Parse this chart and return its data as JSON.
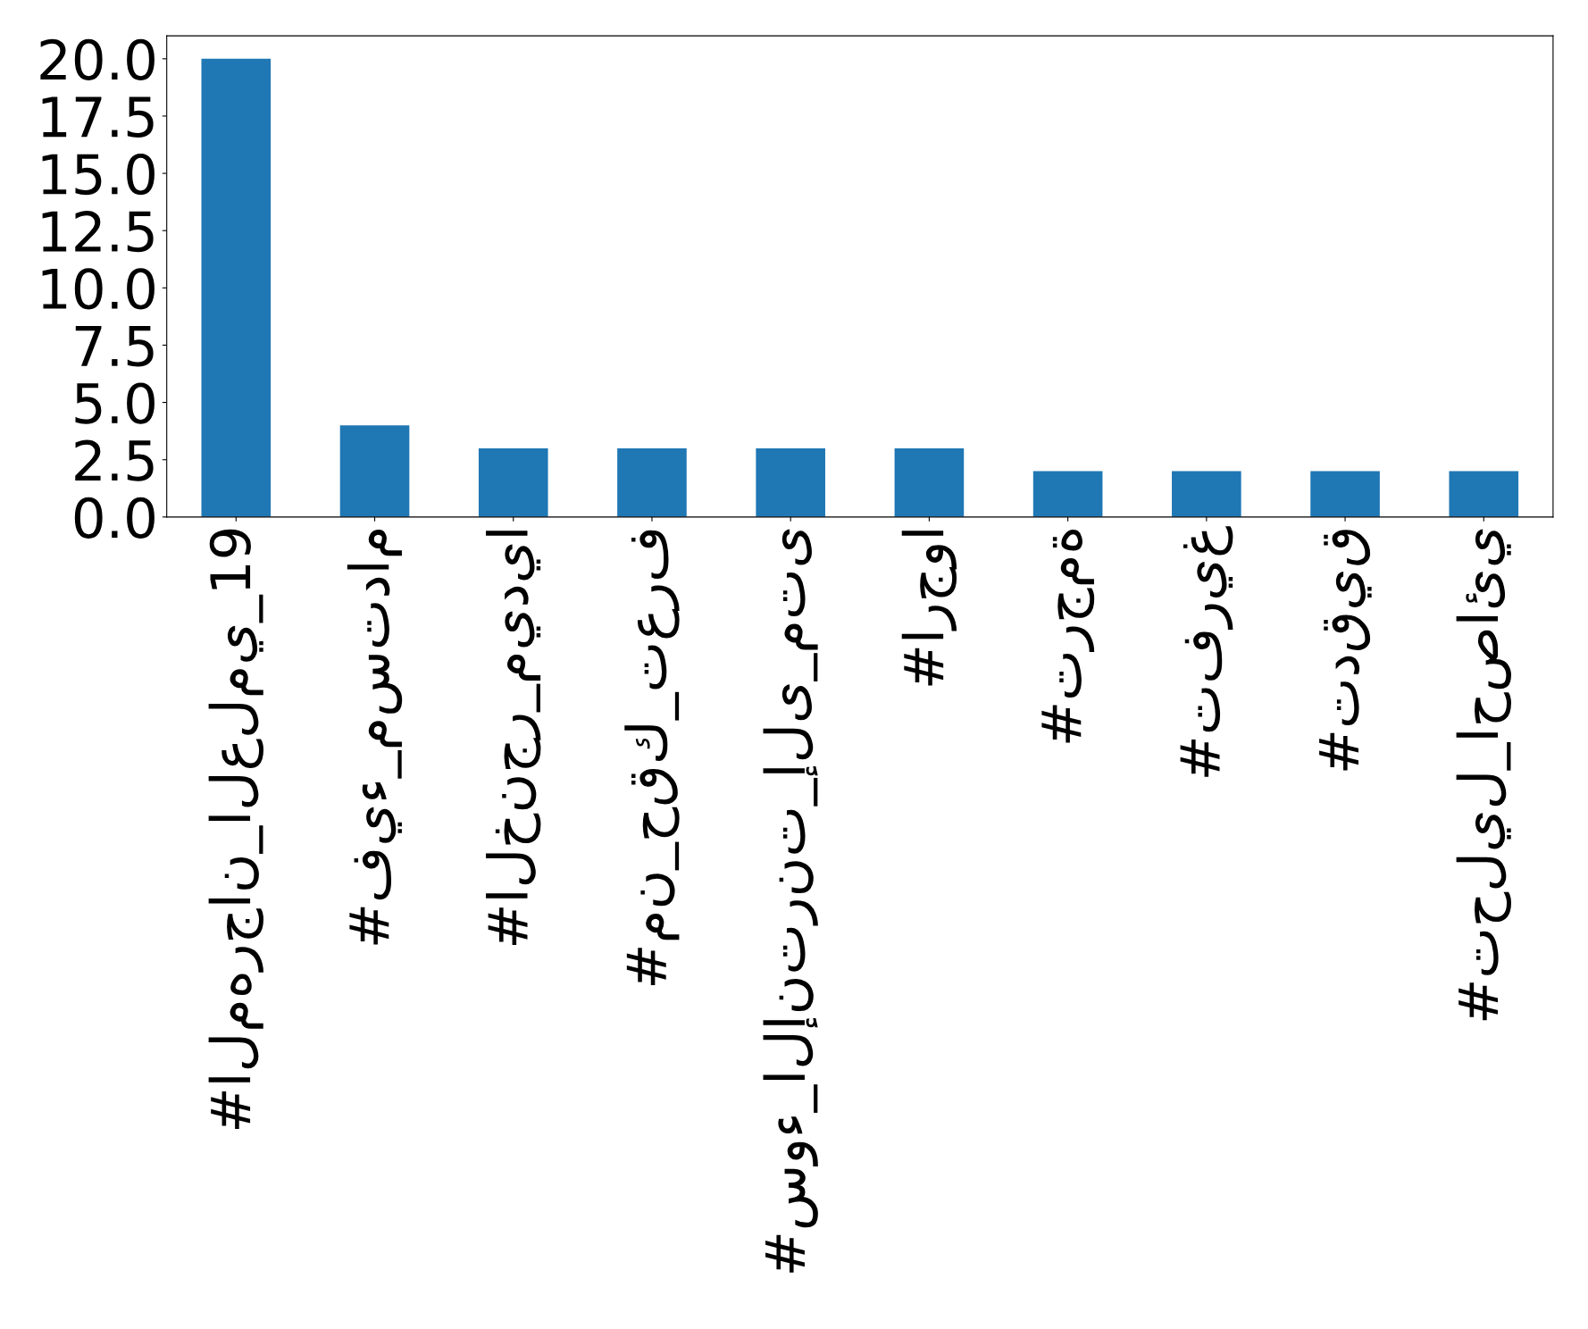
{
  "chart_data": {
    "type": "bar",
    "categories": [
      "#المهرجان_العلمي_19",
      "#فيء_مستدام",
      "#الخنجر_ميديا",
      "#من_حقك_تعرف",
      "#سوء_الإنترنت_إلى_متى",
      "#ارجوا",
      "#ترجمة",
      "#تفريغ",
      "#تدقيق",
      "#تحليل_احصائي"
    ],
    "values": [
      20,
      4,
      3,
      3,
      3,
      3,
      2,
      2,
      2,
      2
    ],
    "color": "#1f77b4",
    "ylim": [
      0,
      21
    ],
    "yticks": [
      {
        "value": 0,
        "label": "0.0"
      },
      {
        "value": 2.5,
        "label": "2.5"
      },
      {
        "value": 5,
        "label": "5.0"
      },
      {
        "value": 7.5,
        "label": "7.5"
      },
      {
        "value": 10,
        "label": "10.0"
      },
      {
        "value": 12.5,
        "label": "12.5"
      },
      {
        "value": 15,
        "label": "15.0"
      },
      {
        "value": 17.5,
        "label": "17.5"
      },
      {
        "value": 20,
        "label": "20.0"
      }
    ],
    "grid": false,
    "legend": false
  }
}
